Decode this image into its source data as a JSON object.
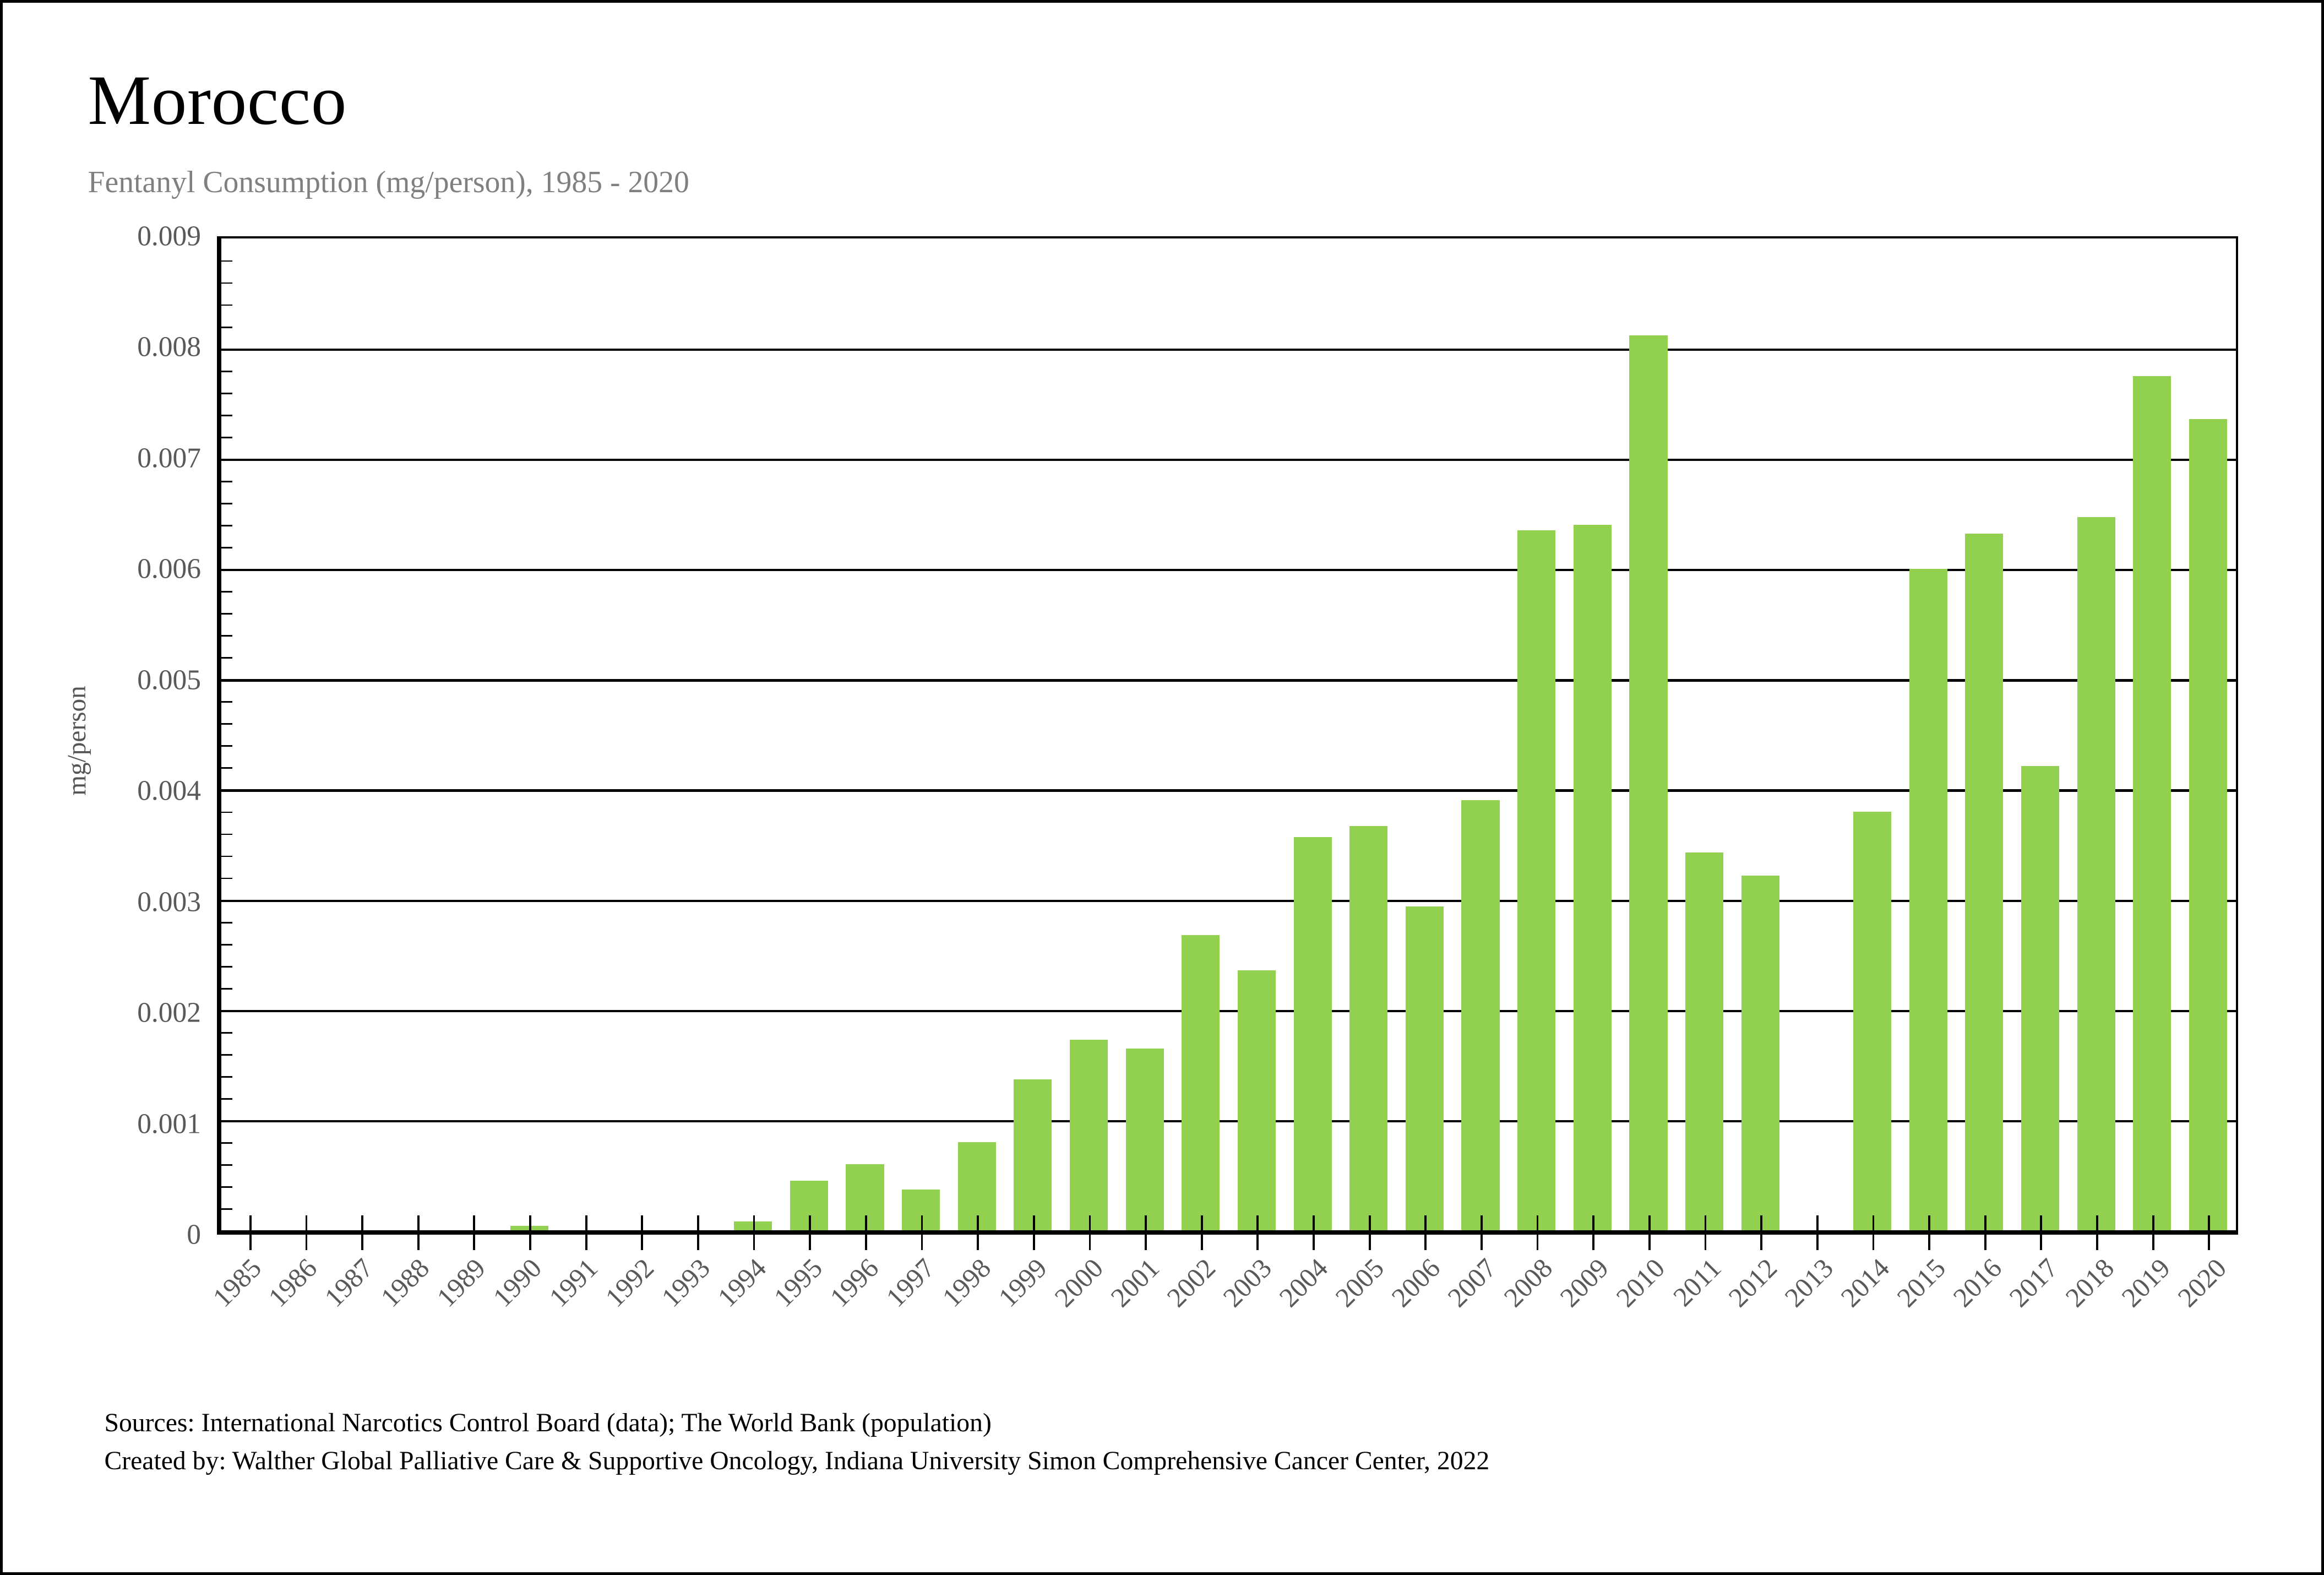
{
  "header": {
    "title": "Morocco",
    "subtitle": "Fentanyl Consumption (mg/person), 1985 - 2020"
  },
  "chart_data": {
    "type": "bar",
    "title": "Morocco",
    "subtitle": "Fentanyl Consumption (mg/person), 1985 - 2020",
    "xlabel": "",
    "ylabel": "mg/person",
    "ylim": [
      0,
      0.009
    ],
    "ytick_step": 0.001,
    "ytick_labels": [
      "0",
      "0.001",
      "0.002",
      "0.003",
      "0.004",
      "0.005",
      "0.006",
      "0.007",
      "0.008",
      "0.009"
    ],
    "yminor_step": 0.0002,
    "grid": "horizontal-major",
    "legend": "none",
    "bar_color": "#92D050",
    "axis_label_color": "#595959",
    "categories": [
      1985,
      1986,
      1987,
      1988,
      1989,
      1990,
      1991,
      1992,
      1993,
      1994,
      1995,
      1996,
      1997,
      1998,
      1999,
      2000,
      2001,
      2002,
      2003,
      2004,
      2005,
      2006,
      2007,
      2008,
      2009,
      2010,
      2011,
      2012,
      2013,
      2014,
      2015,
      2016,
      2017,
      2018,
      2019,
      2020
    ],
    "values": [
      0,
      0,
      0,
      0,
      0,
      4e-05,
      0,
      0,
      0,
      8e-05,
      0.00045,
      0.0006,
      0.00037,
      0.0008,
      0.00137,
      0.00173,
      0.00165,
      0.00268,
      0.00236,
      0.00357,
      0.00367,
      0.00294,
      0.0039,
      0.00635,
      0.0064,
      0.00812,
      0.00343,
      0.00322,
      0,
      0.0038,
      0.006,
      0.00632,
      0.00421,
      0.00647,
      0.00775,
      0.00736
    ]
  },
  "footer": {
    "sources_line": "Sources: International Narcotics Control Board (data); The World Bank (population)",
    "created_line": "Created by: Walther Global Palliative Care & Supportive Oncology, Indiana University Simon Comprehensive Cancer Center, 2022"
  }
}
